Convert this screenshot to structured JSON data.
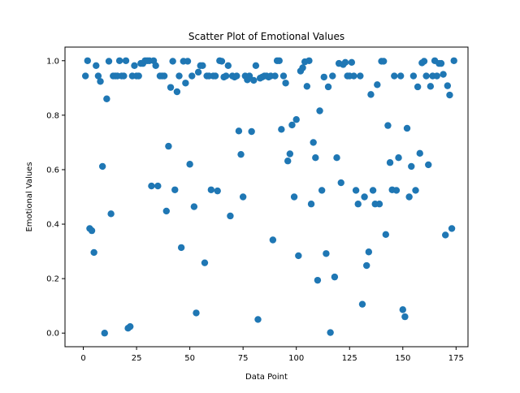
{
  "chart_data": {
    "type": "scatter",
    "title": "Scatter Plot of Emotional Values",
    "xlabel": "Data Point",
    "ylabel": "Emotional Values",
    "xlim": [
      -8.6,
      180.6
    ],
    "ylim": [
      -0.05,
      1.05
    ],
    "xticks": [
      0,
      25,
      50,
      75,
      100,
      125,
      150,
      175
    ],
    "yticks": [
      0.0,
      0.2,
      0.4,
      0.6,
      0.8,
      1.0
    ],
    "xtick_labels": [
      "0",
      "25",
      "50",
      "75",
      "100",
      "125",
      "150",
      "175"
    ],
    "ytick_labels": [
      "0.0",
      "0.2",
      "0.4",
      "0.6",
      "0.8",
      "1.0"
    ],
    "grid": false,
    "marker_color": "#1f77b4",
    "points": [
      [
        1,
        0.944
      ],
      [
        2,
        1.0
      ],
      [
        3,
        0.384
      ],
      [
        4,
        0.376
      ],
      [
        5,
        0.296
      ],
      [
        6,
        0.982
      ],
      [
        7,
        0.944
      ],
      [
        8,
        0.924
      ],
      [
        9,
        0.612
      ],
      [
        10,
        0.0
      ],
      [
        11,
        0.86
      ],
      [
        12,
        0.998
      ],
      [
        13,
        0.438
      ],
      [
        14,
        0.944
      ],
      [
        15,
        0.944
      ],
      [
        16,
        0.944
      ],
      [
        17,
        1.0
      ],
      [
        18,
        0.944
      ],
      [
        19,
        0.944
      ],
      [
        20,
        1.0
      ],
      [
        21,
        0.018
      ],
      [
        22,
        0.024
      ],
      [
        23,
        0.944
      ],
      [
        24,
        0.982
      ],
      [
        25,
        0.944
      ],
      [
        26,
        0.944
      ],
      [
        27,
        0.99
      ],
      [
        28,
        0.99
      ],
      [
        29,
        1.0
      ],
      [
        30,
        1.0
      ],
      [
        31,
        1.0
      ],
      [
        32,
        0.54
      ],
      [
        33,
        1.0
      ],
      [
        34,
        0.982
      ],
      [
        35,
        0.54
      ],
      [
        36,
        0.944
      ],
      [
        37,
        0.944
      ],
      [
        38,
        0.944
      ],
      [
        39,
        0.448
      ],
      [
        40,
        0.686
      ],
      [
        41,
        0.902
      ],
      [
        42,
        0.998
      ],
      [
        43,
        0.526
      ],
      [
        44,
        0.886
      ],
      [
        45,
        0.944
      ],
      [
        46,
        0.314
      ],
      [
        47,
        0.998
      ],
      [
        48,
        0.918
      ],
      [
        49,
        0.998
      ],
      [
        50,
        0.62
      ],
      [
        51,
        0.944
      ],
      [
        52,
        0.464
      ],
      [
        53,
        0.074
      ],
      [
        54,
        0.958
      ],
      [
        55,
        0.982
      ],
      [
        56,
        0.982
      ],
      [
        57,
        0.258
      ],
      [
        58,
        0.944
      ],
      [
        59,
        0.944
      ],
      [
        60,
        0.526
      ],
      [
        61,
        0.944
      ],
      [
        62,
        0.944
      ],
      [
        63,
        0.522
      ],
      [
        64,
        1.0
      ],
      [
        65,
        0.998
      ],
      [
        66,
        0.94
      ],
      [
        67,
        0.944
      ],
      [
        68,
        0.982
      ],
      [
        69,
        0.43
      ],
      [
        70,
        0.944
      ],
      [
        71,
        0.94
      ],
      [
        72,
        0.944
      ],
      [
        73,
        0.742
      ],
      [
        74,
        0.656
      ],
      [
        75,
        0.5
      ],
      [
        76,
        0.944
      ],
      [
        77,
        0.93
      ],
      [
        78,
        0.944
      ],
      [
        79,
        0.74
      ],
      [
        80,
        0.928
      ],
      [
        81,
        0.982
      ],
      [
        82,
        0.05
      ],
      [
        83,
        0.936
      ],
      [
        84,
        0.94
      ],
      [
        85,
        0.944
      ],
      [
        86,
        0.944
      ],
      [
        87,
        0.94
      ],
      [
        88,
        0.944
      ],
      [
        89,
        0.342
      ],
      [
        90,
        0.944
      ],
      [
        91,
        1.0
      ],
      [
        92,
        1.0
      ],
      [
        93,
        0.748
      ],
      [
        94,
        0.944
      ],
      [
        95,
        0.918
      ],
      [
        96,
        0.632
      ],
      [
        97,
        0.658
      ],
      [
        98,
        0.764
      ],
      [
        99,
        0.5
      ],
      [
        100,
        0.784
      ],
      [
        101,
        0.284
      ],
      [
        102,
        0.962
      ],
      [
        103,
        0.974
      ],
      [
        104,
        0.996
      ],
      [
        105,
        0.906
      ],
      [
        106,
        1.0
      ],
      [
        107,
        0.474
      ],
      [
        108,
        0.7
      ],
      [
        109,
        0.644
      ],
      [
        110,
        0.194
      ],
      [
        111,
        0.816
      ],
      [
        112,
        0.524
      ],
      [
        113,
        0.94
      ],
      [
        114,
        0.292
      ],
      [
        115,
        0.904
      ],
      [
        116,
        0.002
      ],
      [
        117,
        0.944
      ],
      [
        118,
        0.206
      ],
      [
        119,
        0.644
      ],
      [
        120,
        0.99
      ],
      [
        121,
        0.552
      ],
      [
        122,
        0.986
      ],
      [
        123,
        0.994
      ],
      [
        124,
        0.944
      ],
      [
        125,
        0.944
      ],
      [
        126,
        0.994
      ],
      [
        127,
        0.944
      ],
      [
        128,
        0.524
      ],
      [
        129,
        0.474
      ],
      [
        130,
        0.944
      ],
      [
        131,
        0.106
      ],
      [
        132,
        0.5
      ],
      [
        133,
        0.248
      ],
      [
        134,
        0.298
      ],
      [
        135,
        0.876
      ],
      [
        136,
        0.524
      ],
      [
        137,
        0.474
      ],
      [
        138,
        0.912
      ],
      [
        139,
        0.474
      ],
      [
        140,
        0.998
      ],
      [
        141,
        0.998
      ],
      [
        142,
        0.362
      ],
      [
        143,
        0.762
      ],
      [
        144,
        0.626
      ],
      [
        145,
        0.526
      ],
      [
        146,
        0.944
      ],
      [
        147,
        0.524
      ],
      [
        148,
        0.644
      ],
      [
        149,
        0.944
      ],
      [
        150,
        0.086
      ],
      [
        151,
        0.06
      ],
      [
        152,
        0.752
      ],
      [
        153,
        0.5
      ],
      [
        154,
        0.612
      ],
      [
        155,
        0.944
      ],
      [
        156,
        0.524
      ],
      [
        157,
        0.904
      ],
      [
        158,
        0.66
      ],
      [
        159,
        0.992
      ],
      [
        160,
        0.998
      ],
      [
        161,
        0.944
      ],
      [
        162,
        0.618
      ],
      [
        163,
        0.906
      ],
      [
        164,
        0.944
      ],
      [
        165,
        1.0
      ],
      [
        166,
        0.944
      ],
      [
        167,
        0.99
      ],
      [
        168,
        0.99
      ],
      [
        169,
        0.95
      ],
      [
        170,
        0.36
      ],
      [
        171,
        0.908
      ],
      [
        172,
        0.874
      ],
      [
        173,
        0.384
      ],
      [
        174,
        1.0
      ]
    ]
  }
}
